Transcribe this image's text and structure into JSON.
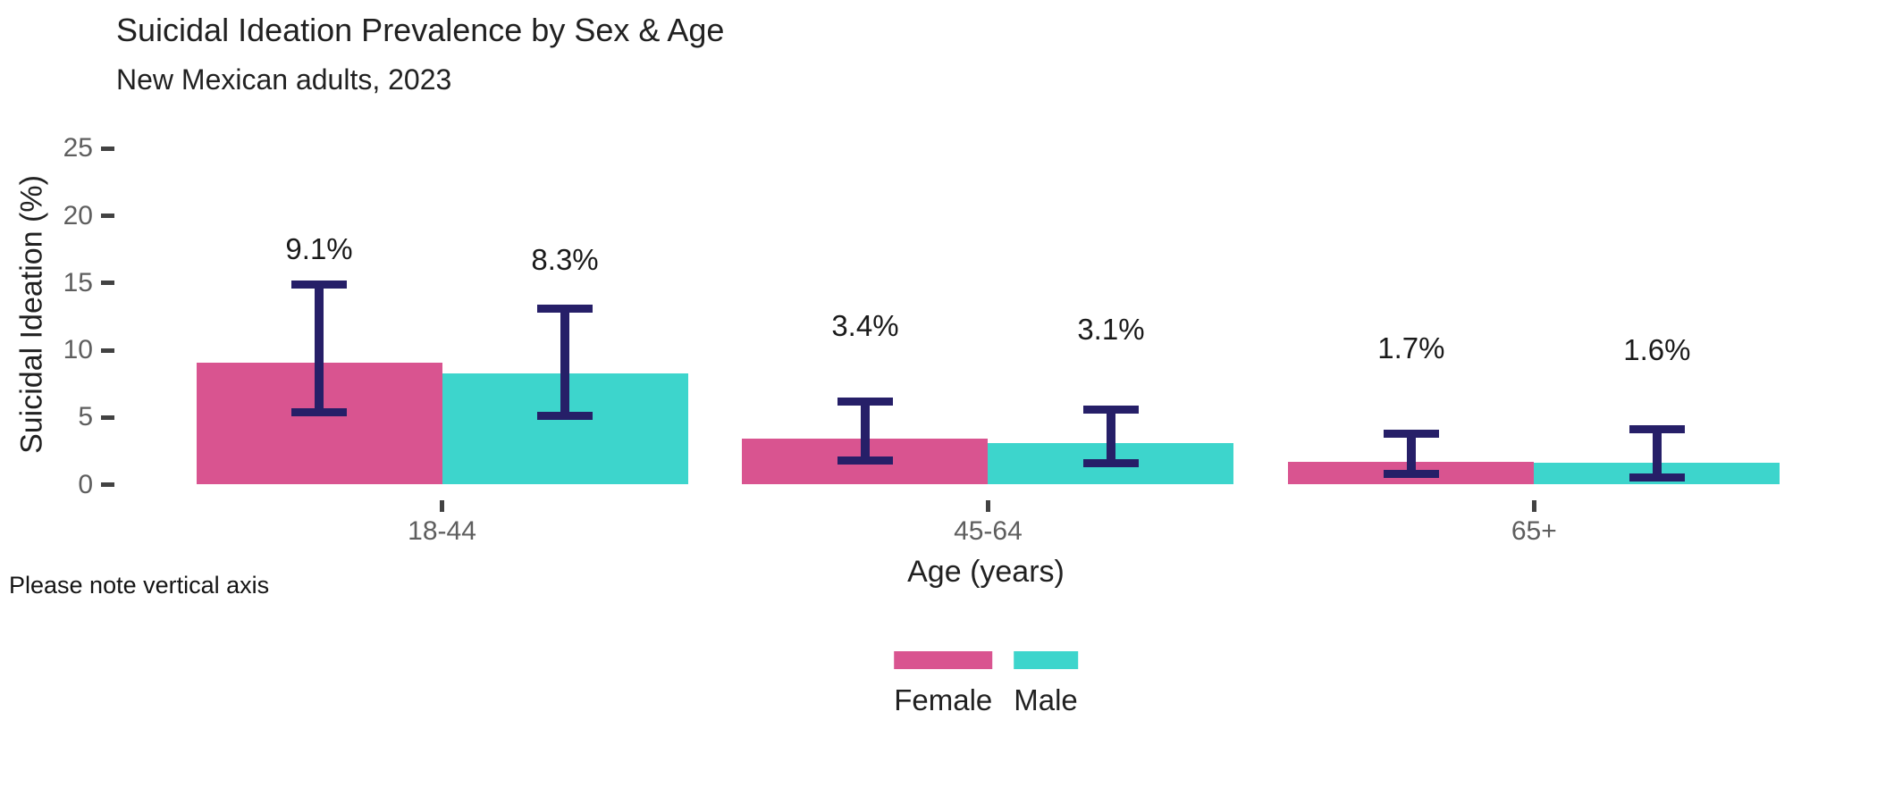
{
  "chart_data": {
    "type": "bar",
    "title": "Suicidal Ideation Prevalence by Sex & Age",
    "subtitle": "New Mexican adults, 2023",
    "xlabel": "Age (years)",
    "ylabel": "Suicidal Ideation (%)",
    "caption": "Please note vertical axis",
    "categories": [
      "18-44",
      "45-64",
      "65+"
    ],
    "yticks": [
      0,
      5,
      10,
      15,
      20,
      25
    ],
    "ylim": [
      0,
      26
    ],
    "grid": false,
    "legend_position": "bottom",
    "series": [
      {
        "name": "Female",
        "color": "#D95490",
        "values": [
          9.1,
          3.4,
          1.7
        ],
        "value_labels": [
          "9.1%",
          "3.4%",
          "1.7%"
        ],
        "ci_low": [
          5.4,
          1.8,
          0.8
        ],
        "ci_high": [
          14.9,
          6.2,
          3.8
        ]
      },
      {
        "name": "Male",
        "color": "#3DD5CC",
        "values": [
          8.3,
          3.1,
          1.6
        ],
        "value_labels": [
          "8.3%",
          "3.1%",
          "1.6%"
        ],
        "ci_low": [
          5.1,
          1.6,
          0.5
        ],
        "ci_high": [
          13.1,
          5.6,
          4.1
        ]
      }
    ],
    "errorbar_color": "#261F68",
    "colors": {
      "axis_tick_text": "#5E5E5E",
      "tick_mark": "#424242",
      "text": "#212121",
      "background": "#FFFFFF"
    }
  }
}
